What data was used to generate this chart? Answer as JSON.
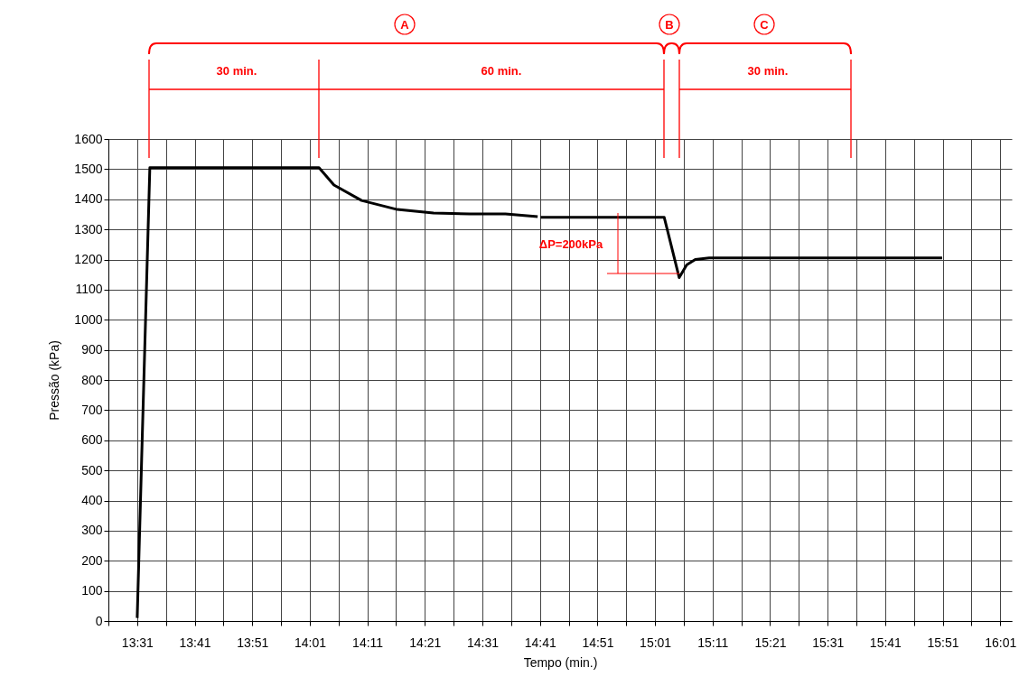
{
  "chart_data": {
    "type": "line",
    "xlabel": "Tempo (min.)",
    "ylabel": "Pressão (kPa)",
    "x": [
      13.5167,
      13.5533,
      14.0433,
      14.0867,
      14.1667,
      14.27,
      14.375,
      14.48,
      14.5833,
      14.6767,
      14.68,
      14.685,
      15.0433,
      15.0867,
      15.1083,
      15.1333,
      15.1733,
      15.8483
    ],
    "series": [
      {
        "color": "#000000",
        "values": [
          10,
          1505,
          1505,
          1447,
          1396,
          1366,
          1354,
          1351,
          1351,
          1342,
          null,
          1340,
          1340,
          1140,
          1182,
          1200,
          1205,
          1205
        ]
      }
    ],
    "xlim": [
      13.4333,
      16.05
    ],
    "ylim": [
      0,
      1600
    ],
    "xticks": [
      {
        "value": 13.4333,
        "label": null
      },
      {
        "value": 13.5167,
        "label": "13:31"
      },
      {
        "value": 13.6,
        "label": null
      },
      {
        "value": 13.6833,
        "label": "13:41"
      },
      {
        "value": 13.7667,
        "label": null
      },
      {
        "value": 13.85,
        "label": "13:51"
      },
      {
        "value": 13.9333,
        "label": null
      },
      {
        "value": 14.0167,
        "label": "14:01"
      },
      {
        "value": 14.1,
        "label": null
      },
      {
        "value": 14.1833,
        "label": "14:11"
      },
      {
        "value": 14.2667,
        "label": null
      },
      {
        "value": 14.35,
        "label": "14:21"
      },
      {
        "value": 14.4333,
        "label": null
      },
      {
        "value": 14.5167,
        "label": "14:31"
      },
      {
        "value": 14.6,
        "label": null
      },
      {
        "value": 14.6833,
        "label": "14:41"
      },
      {
        "value": 14.7667,
        "label": null
      },
      {
        "value": 14.85,
        "label": "14:51"
      },
      {
        "value": 14.9333,
        "label": null
      },
      {
        "value": 15.0167,
        "label": "15:01"
      },
      {
        "value": 15.1,
        "label": null
      },
      {
        "value": 15.1833,
        "label": "15:11"
      },
      {
        "value": 15.2667,
        "label": null
      },
      {
        "value": 15.35,
        "label": "15:21"
      },
      {
        "value": 15.4333,
        "label": null
      },
      {
        "value": 15.5167,
        "label": "15:31"
      },
      {
        "value": 15.6,
        "label": null
      },
      {
        "value": 15.6833,
        "label": "15:41"
      },
      {
        "value": 15.7667,
        "label": null
      },
      {
        "value": 15.85,
        "label": "15:51"
      },
      {
        "value": 15.9333,
        "label": null
      },
      {
        "value": 16.0167,
        "label": "16:01"
      }
    ],
    "yticks": [
      0,
      100,
      200,
      300,
      400,
      500,
      600,
      700,
      800,
      900,
      1000,
      1100,
      1200,
      1300,
      1400,
      1500,
      1600
    ],
    "grid": true,
    "legend": false,
    "marker": "none",
    "line_style": "solid",
    "annotations": [
      "A",
      "B",
      "C",
      "30 min.",
      "60 min.",
      "30 min.",
      "ΔP=200kPa"
    ]
  }
}
